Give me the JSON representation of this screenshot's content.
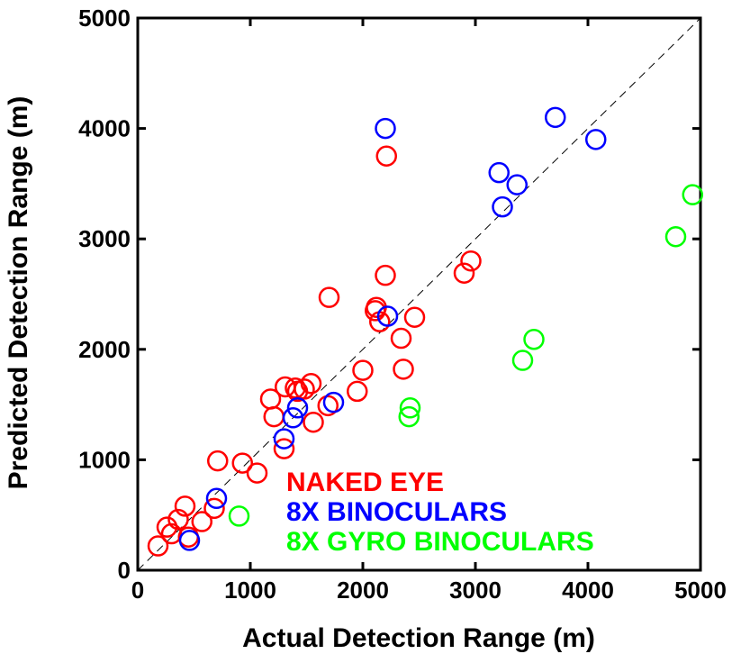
{
  "chart_data": {
    "type": "scatter",
    "xlabel": "Actual Detection Range (m)",
    "ylabel": "Predicted Detection Range (m)",
    "xlim": [
      0,
      5000
    ],
    "ylim": [
      0,
      5000
    ],
    "xticks": [
      "0",
      "1000",
      "2000",
      "3000",
      "4000",
      "5000"
    ],
    "yticks": [
      "0",
      "1000",
      "2000",
      "3000",
      "4000",
      "5000"
    ],
    "reference_line": "y = x (dashed)",
    "legend_placement": "bottom-center",
    "series": [
      {
        "name": "NAKED EYE",
        "color": "#ff0000",
        "points": [
          [
            180,
            220
          ],
          [
            260,
            390
          ],
          [
            300,
            330
          ],
          [
            360,
            460
          ],
          [
            420,
            580
          ],
          [
            450,
            300
          ],
          [
            570,
            440
          ],
          [
            680,
            560
          ],
          [
            710,
            990
          ],
          [
            930,
            970
          ],
          [
            1060,
            880
          ],
          [
            1180,
            1550
          ],
          [
            1210,
            1390
          ],
          [
            1300,
            1100
          ],
          [
            1310,
            1660
          ],
          [
            1400,
            1650
          ],
          [
            1420,
            1620
          ],
          [
            1480,
            1640
          ],
          [
            1540,
            1690
          ],
          [
            1560,
            1340
          ],
          [
            1690,
            1490
          ],
          [
            1700,
            2470
          ],
          [
            1950,
            1620
          ],
          [
            2000,
            1810
          ],
          [
            2110,
            2350
          ],
          [
            2120,
            2380
          ],
          [
            2150,
            2250
          ],
          [
            2200,
            2670
          ],
          [
            2210,
            3750
          ],
          [
            2340,
            2100
          ],
          [
            2360,
            1820
          ],
          [
            2460,
            2290
          ],
          [
            2900,
            2690
          ],
          [
            2960,
            2800
          ]
        ]
      },
      {
        "name": "8X BINOCULARS",
        "color": "#0000ff",
        "points": [
          [
            460,
            270
          ],
          [
            700,
            650
          ],
          [
            1300,
            1190
          ],
          [
            1380,
            1380
          ],
          [
            1420,
            1470
          ],
          [
            1740,
            1520
          ],
          [
            2200,
            4000
          ],
          [
            2220,
            2300
          ],
          [
            3210,
            3600
          ],
          [
            3240,
            3290
          ],
          [
            3370,
            3490
          ],
          [
            3710,
            4100
          ],
          [
            4070,
            3900
          ]
        ]
      },
      {
        "name": "8X GYRO BINOCULARS",
        "color": "#00ff00",
        "points": [
          [
            900,
            490
          ],
          [
            2410,
            1390
          ],
          [
            2420,
            1470
          ],
          [
            3420,
            1900
          ],
          [
            3520,
            2090
          ],
          [
            4780,
            3020
          ],
          [
            4930,
            3400
          ]
        ]
      }
    ]
  }
}
